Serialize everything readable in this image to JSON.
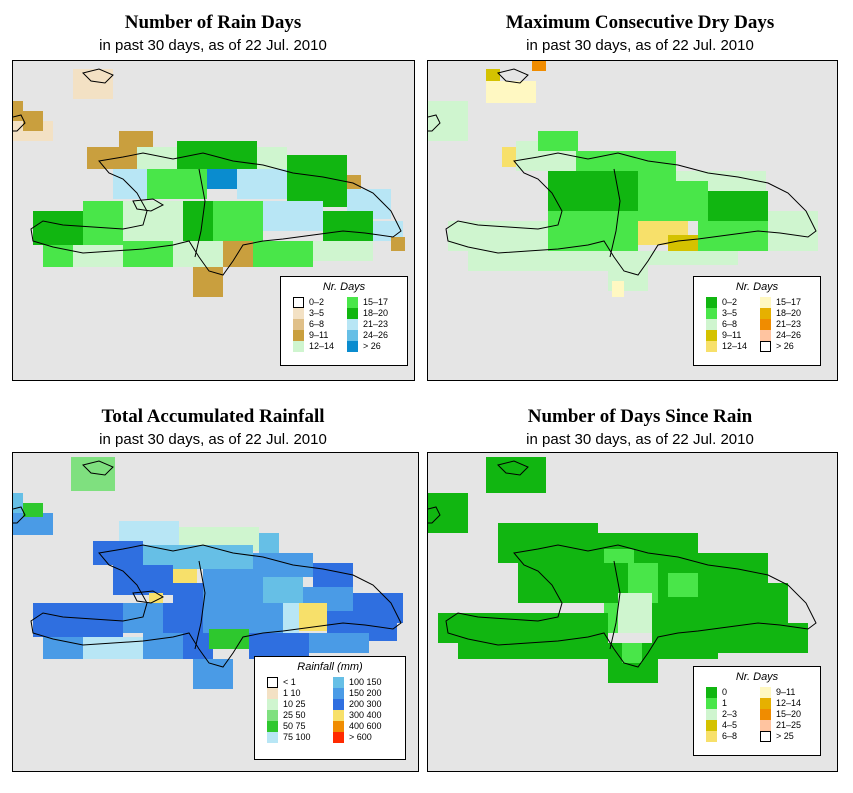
{
  "panels": [
    {
      "title": "Number of Rain Days",
      "subtitle": "in past 30 days, as of  22 Jul. 2010",
      "legend": {
        "title": "Nr. Days",
        "items": [
          {
            "label": "0–2",
            "color": "#ffffff"
          },
          {
            "label": "3–5",
            "color": "#f3e1c4"
          },
          {
            "label": "6–8",
            "color": "#e0c089"
          },
          {
            "label": "9–11",
            "color": "#c99f3e"
          },
          {
            "label": "12–14",
            "color": "#cff5cf"
          },
          {
            "label": "15–17",
            "color": "#49e649"
          },
          {
            "label": "18–20",
            "color": "#11b611"
          },
          {
            "label": "21–23",
            "color": "#b8e6f5"
          },
          {
            "label": "24–26",
            "color": "#66bfe6"
          },
          {
            "label": "> 26",
            "color": "#0a8ccf"
          }
        ]
      }
    },
    {
      "title": "Maximum Consecutive Dry Days",
      "subtitle": "in past 30 days, as of  22 Jul. 2010",
      "legend": {
        "title": "Nr. Days",
        "items": [
          {
            "label": "0–2",
            "color": "#11b611"
          },
          {
            "label": "3–5",
            "color": "#49e649"
          },
          {
            "label": "6–8",
            "color": "#cff5cf"
          },
          {
            "label": "9–11",
            "color": "#d4c200"
          },
          {
            "label": "12–14",
            "color": "#f7e06a"
          },
          {
            "label": "15–17",
            "color": "#fff8c2"
          },
          {
            "label": "18–20",
            "color": "#e6b000"
          },
          {
            "label": "21–23",
            "color": "#f08c00"
          },
          {
            "label": "24–26",
            "color": "#ffc4a0"
          },
          {
            "label": "> 26",
            "color": "#ffffff"
          }
        ]
      }
    },
    {
      "title": "Total Accumulated Rainfall",
      "subtitle": "in past 30 days, as of  22 Jul. 2010",
      "legend": {
        "title": "Rainfall (mm)",
        "items": [
          {
            "label": "< 1",
            "color": "#ffffff"
          },
          {
            "label": "1   10",
            "color": "#f3e1c4"
          },
          {
            "label": "10   25",
            "color": "#cff5cf"
          },
          {
            "label": "25   50",
            "color": "#7fe07f"
          },
          {
            "label": "50   75",
            "color": "#2ec82e"
          },
          {
            "label": "75   100",
            "color": "#b8e6f5"
          },
          {
            "label": "100   150",
            "color": "#66bfe6"
          },
          {
            "label": "150   200",
            "color": "#4a9be6"
          },
          {
            "label": "200   300",
            "color": "#2f6fe0"
          },
          {
            "label": "300   400",
            "color": "#f7e06a"
          },
          {
            "label": "400   600",
            "color": "#f08c00"
          },
          {
            "label": "> 600",
            "color": "#ff2a00"
          }
        ]
      }
    },
    {
      "title": "Number of Days Since Rain",
      "subtitle": "in past 30 days, as of  22 Jul. 2010",
      "legend": {
        "title": "Nr. Days",
        "items": [
          {
            "label": "0",
            "color": "#11b611"
          },
          {
            "label": "1",
            "color": "#49e649"
          },
          {
            "label": "2–3",
            "color": "#cff5cf"
          },
          {
            "label": "4–5",
            "color": "#d4c200"
          },
          {
            "label": "6–8",
            "color": "#f7e06a"
          },
          {
            "label": "9–11",
            "color": "#fff8c2"
          },
          {
            "label": "12–14",
            "color": "#e6b000"
          },
          {
            "label": "15–20",
            "color": "#f08c00"
          },
          {
            "label": "21–25",
            "color": "#ffc4a0"
          },
          {
            "label": "> 25",
            "color": "#ffffff"
          }
        ]
      }
    }
  ]
}
